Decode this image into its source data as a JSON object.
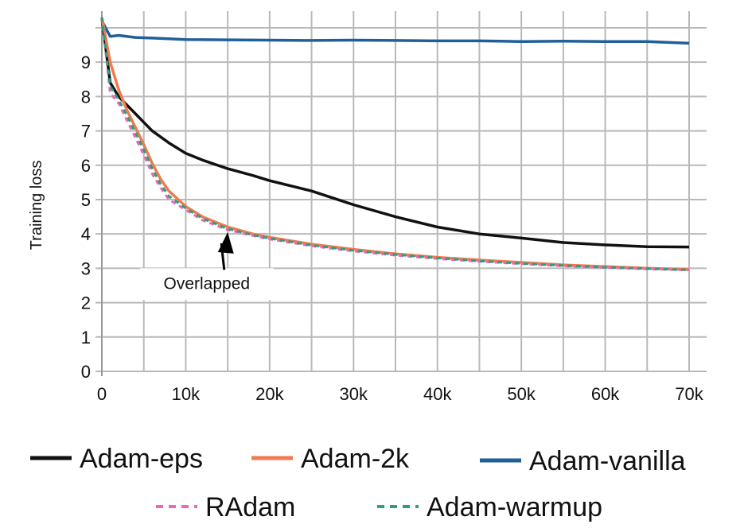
{
  "chart_data": {
    "type": "line",
    "ylabel": "Training loss",
    "xlabel": "",
    "xlim": [
      0,
      70000
    ],
    "ylim": [
      0,
      10.3
    ],
    "grid": true,
    "legend_position": "bottom",
    "x_ticks": [
      {
        "value": 0,
        "label": "0"
      },
      {
        "value": 10000,
        "label": "10k"
      },
      {
        "value": 20000,
        "label": "20k"
      },
      {
        "value": 30000,
        "label": "30k"
      },
      {
        "value": 40000,
        "label": "40k"
      },
      {
        "value": 50000,
        "label": "50k"
      },
      {
        "value": 60000,
        "label": "60k"
      },
      {
        "value": 70000,
        "label": "70k"
      }
    ],
    "y_ticks": [
      {
        "value": 0,
        "label": "0"
      },
      {
        "value": 1,
        "label": "1"
      },
      {
        "value": 2,
        "label": "2"
      },
      {
        "value": 3,
        "label": "3"
      },
      {
        "value": 4,
        "label": "4"
      },
      {
        "value": 5,
        "label": "5"
      },
      {
        "value": 6,
        "label": "6"
      },
      {
        "value": 7,
        "label": "7"
      },
      {
        "value": 8,
        "label": "8"
      },
      {
        "value": 9,
        "label": "9"
      }
    ],
    "annotation": {
      "text": "Overlapped",
      "x": 15000,
      "y": 4.05,
      "text_x": 12500,
      "text_y": 2.4
    },
    "series": [
      {
        "name": "Adam-vanilla",
        "color": "#1f5f9a",
        "dash": "solid",
        "x": [
          0,
          1000,
          2000,
          4000,
          6000,
          8000,
          10000,
          15000,
          20000,
          25000,
          30000,
          35000,
          40000,
          45000,
          50000,
          55000,
          60000,
          65000,
          70000
        ],
        "y": [
          10.2,
          9.75,
          9.78,
          9.72,
          9.7,
          9.68,
          9.66,
          9.65,
          9.64,
          9.63,
          9.64,
          9.63,
          9.62,
          9.62,
          9.6,
          9.61,
          9.6,
          9.6,
          9.55
        ]
      },
      {
        "name": "Adam-eps",
        "color": "#111111",
        "dash": "solid",
        "x": [
          0,
          1000,
          2000,
          3000,
          4000,
          5000,
          6000,
          8000,
          10000,
          12000,
          15000,
          18000,
          20000,
          25000,
          30000,
          35000,
          40000,
          45000,
          50000,
          55000,
          60000,
          65000,
          70000
        ],
        "y": [
          10.3,
          8.4,
          8.0,
          7.75,
          7.5,
          7.25,
          7.0,
          6.65,
          6.35,
          6.15,
          5.9,
          5.7,
          5.55,
          5.25,
          4.85,
          4.5,
          4.2,
          4.0,
          3.88,
          3.75,
          3.68,
          3.63,
          3.62
        ]
      },
      {
        "name": "Adam-2k",
        "color": "#f07b50",
        "dash": "solid",
        "x": [
          0,
          1000,
          2000,
          3000,
          4000,
          5000,
          6000,
          7000,
          8000,
          10000,
          12000,
          15000,
          18000,
          20000,
          25000,
          30000,
          35000,
          40000,
          45000,
          50000,
          55000,
          60000,
          65000,
          70000
        ],
        "y": [
          10.3,
          9.0,
          8.2,
          7.6,
          7.1,
          6.6,
          6.05,
          5.6,
          5.25,
          4.8,
          4.5,
          4.2,
          4.0,
          3.9,
          3.7,
          3.55,
          3.42,
          3.32,
          3.24,
          3.17,
          3.1,
          3.05,
          3.0,
          2.97
        ]
      },
      {
        "name": "RAdam",
        "color": "#ee66b8",
        "dash": "dashed",
        "x": [
          0,
          1000,
          2000,
          3000,
          4000,
          5000,
          6000,
          7000,
          8000,
          10000,
          12000,
          15000,
          18000,
          20000,
          25000,
          30000,
          35000,
          40000,
          45000,
          50000,
          55000,
          60000,
          65000,
          70000
        ],
        "y": [
          10.3,
          8.1,
          7.8,
          7.3,
          6.8,
          6.3,
          5.75,
          5.35,
          5.0,
          4.7,
          4.4,
          4.12,
          3.95,
          3.85,
          3.65,
          3.5,
          3.38,
          3.28,
          3.2,
          3.13,
          3.07,
          3.02,
          2.98,
          2.95
        ]
      },
      {
        "name": "Adam-warmup",
        "color": "#2e9e7e",
        "dash": "dashed",
        "x": [
          0,
          1000,
          2000,
          3000,
          4000,
          5000,
          6000,
          7000,
          8000,
          10000,
          12000,
          15000,
          18000,
          20000,
          25000,
          30000,
          35000,
          40000,
          45000,
          50000,
          55000,
          60000,
          65000,
          70000
        ],
        "y": [
          10.3,
          8.3,
          7.9,
          7.45,
          6.95,
          6.45,
          5.9,
          5.45,
          5.1,
          4.75,
          4.45,
          4.15,
          3.97,
          3.87,
          3.67,
          3.52,
          3.4,
          3.3,
          3.21,
          3.14,
          3.08,
          3.03,
          2.99,
          2.95
        ]
      }
    ]
  }
}
